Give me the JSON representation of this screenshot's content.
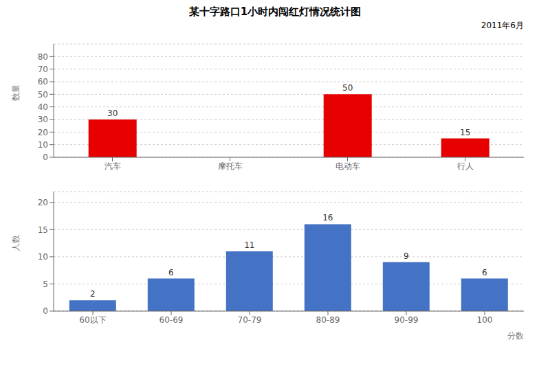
{
  "chart_data": [
    {
      "type": "bar",
      "title": "某十字路口1小时内闯红灯情况统计图",
      "subtitle": "2011年6月",
      "ylabel": "数量",
      "categories": [
        "汽车",
        "摩托车",
        "电动车",
        "行人"
      ],
      "values": [
        30,
        null,
        50,
        15
      ],
      "color": "#e60000",
      "ylim": [
        0,
        90
      ],
      "yticks": [
        0,
        10,
        20,
        30,
        40,
        50,
        60,
        70,
        80
      ],
      "grid": true,
      "data_labels": true
    },
    {
      "type": "bar",
      "ylabel": "人数",
      "xlabel": "分数",
      "categories": [
        "60以下",
        "60-69",
        "70-79",
        "80-89",
        "90-99",
        "100"
      ],
      "values": [
        2,
        6,
        11,
        16,
        9,
        6
      ],
      "color": "#4472c4",
      "ylim": [
        0,
        22
      ],
      "yticks": [
        0,
        5,
        10,
        15,
        20
      ],
      "grid": true,
      "data_labels": true
    }
  ]
}
